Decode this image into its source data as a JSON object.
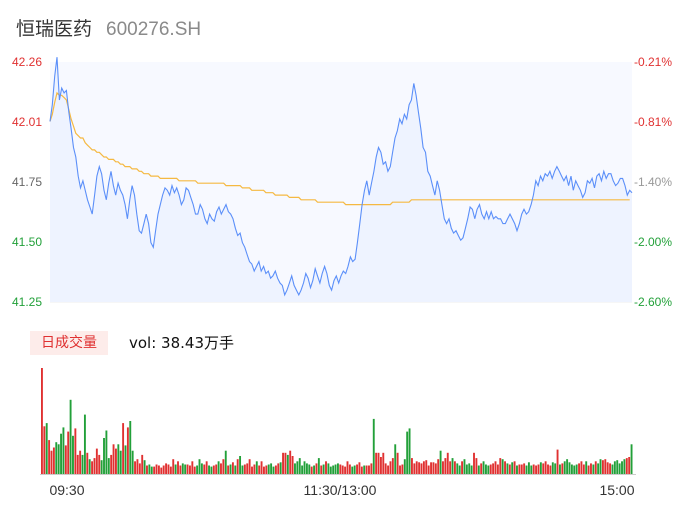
{
  "header": {
    "name": "恒瑞医药",
    "code": "600276.SH"
  },
  "volume_panel": {
    "badge": "日成交量",
    "label": "vol: 38.43万手"
  },
  "colors": {
    "price": "#5b8ff9",
    "avg": "#f5b942",
    "up": "#e03131",
    "down": "#22a039",
    "grid": "#eeeeee"
  },
  "chart_data": [
    {
      "type": "line",
      "title": "",
      "y_left_ticks": [
        "42.26",
        "42.01",
        "41.75",
        "41.50",
        "41.25"
      ],
      "y_right_ticks": [
        "-0.21%",
        "-0.81%",
        "-1.40%",
        "-2.00%",
        "-2.60%"
      ],
      "ylim": [
        41.25,
        42.26
      ],
      "series": [
        {
          "key": "price",
          "values": [
            42.01,
            42.08,
            42.2,
            42.28,
            42.1,
            42.15,
            42.13,
            42.14,
            42.05,
            41.98,
            41.9,
            41.86,
            41.78,
            41.73,
            41.76,
            41.72,
            41.68,
            41.65,
            41.62,
            41.7,
            41.78,
            41.82,
            41.79,
            41.72,
            41.68,
            41.75,
            41.8,
            41.74,
            41.7,
            41.75,
            41.72,
            41.7,
            41.66,
            41.6,
            41.68,
            41.74,
            41.7,
            41.62,
            41.55,
            41.54,
            41.58,
            41.62,
            41.58,
            41.5,
            41.48,
            41.55,
            41.62,
            41.66,
            41.7,
            41.73,
            41.72,
            41.7,
            41.74,
            41.71,
            41.73,
            41.7,
            41.66,
            41.68,
            41.73,
            41.72,
            41.69,
            41.66,
            41.62,
            41.62,
            41.66,
            41.64,
            41.6,
            41.58,
            41.62,
            41.6,
            41.59,
            41.63,
            41.65,
            41.62,
            41.64,
            41.66,
            41.63,
            41.62,
            41.6,
            41.56,
            41.53,
            41.54,
            41.5,
            41.48,
            41.45,
            41.42,
            41.41,
            41.38,
            41.4,
            41.42,
            41.38,
            41.4,
            41.37,
            41.38,
            41.35,
            41.36,
            41.38,
            41.35,
            41.33,
            41.32,
            41.28,
            41.3,
            41.33,
            41.36,
            41.32,
            41.3,
            41.28,
            41.3,
            41.33,
            41.37,
            41.35,
            41.31,
            41.34,
            41.39,
            41.36,
            41.33,
            41.37,
            41.4,
            41.37,
            41.32,
            41.3,
            41.34,
            41.36,
            41.33,
            41.36,
            41.38,
            41.37,
            41.4,
            41.44,
            41.42,
            41.43,
            41.5,
            41.58,
            41.66,
            41.72,
            41.76,
            41.7,
            41.75,
            41.8,
            41.86,
            41.9,
            41.88,
            41.83,
            41.84,
            41.8,
            41.82,
            41.88,
            41.94,
            41.97,
            42.02,
            42.0,
            42.04,
            42.02,
            42.08,
            42.1,
            42.17,
            42.12,
            42.05,
            41.98,
            41.9,
            41.88,
            41.8,
            41.78,
            41.74,
            41.7,
            41.76,
            41.72,
            41.66,
            41.6,
            41.58,
            41.6,
            41.56,
            41.54,
            41.55,
            41.53,
            41.51,
            41.52,
            41.56,
            41.6,
            41.65,
            41.64,
            41.6,
            41.64,
            41.66,
            41.62,
            41.6,
            41.63,
            41.6,
            41.63,
            41.6,
            41.61,
            41.6,
            41.6,
            41.58,
            41.58,
            41.6,
            41.62,
            41.6,
            41.58,
            41.55,
            41.58,
            41.62,
            41.64,
            41.62,
            41.63,
            41.66,
            41.7,
            41.76,
            41.74,
            41.78,
            41.76,
            41.79,
            41.78,
            41.8,
            41.77,
            41.8,
            41.82,
            41.8,
            41.78,
            41.76,
            41.78,
            41.74,
            41.78,
            41.72,
            41.76,
            41.74,
            41.72,
            41.69,
            41.71,
            41.76,
            41.75,
            41.77,
            41.73,
            41.78,
            41.79,
            41.76,
            41.8,
            41.77,
            41.79,
            41.79,
            41.76,
            41.74,
            41.75,
            41.77,
            41.77,
            41.74,
            41.7,
            41.72,
            41.71
          ]
        },
        {
          "key": "avg",
          "values": [
            42.01,
            42.04,
            42.09,
            42.13,
            42.12,
            42.12,
            42.11,
            42.1,
            42.06,
            42.02,
            41.99,
            41.96,
            41.95,
            41.94,
            41.94,
            41.92,
            41.91,
            41.9,
            41.89,
            41.89,
            41.88,
            41.88,
            41.87,
            41.86,
            41.86,
            41.85,
            41.85,
            41.85,
            41.84,
            41.84,
            41.83,
            41.83,
            41.82,
            41.82,
            41.82,
            41.81,
            41.81,
            41.81,
            41.8,
            41.8,
            41.79,
            41.79,
            41.79,
            41.78,
            41.78,
            41.78,
            41.78,
            41.77,
            41.77,
            41.77,
            41.77,
            41.77,
            41.77,
            41.77,
            41.77,
            41.76,
            41.76,
            41.76,
            41.76,
            41.76,
            41.76,
            41.76,
            41.76,
            41.75,
            41.75,
            41.75,
            41.75,
            41.75,
            41.75,
            41.75,
            41.75,
            41.75,
            41.75,
            41.75,
            41.75,
            41.74,
            41.74,
            41.74,
            41.74,
            41.74,
            41.74,
            41.74,
            41.73,
            41.73,
            41.73,
            41.73,
            41.72,
            41.72,
            41.72,
            41.72,
            41.72,
            41.72,
            41.71,
            41.71,
            41.71,
            41.71,
            41.7,
            41.7,
            41.7,
            41.7,
            41.7,
            41.7,
            41.69,
            41.69,
            41.69,
            41.69,
            41.69,
            41.68,
            41.68,
            41.68,
            41.68,
            41.68,
            41.68,
            41.68,
            41.67,
            41.67,
            41.67,
            41.67,
            41.67,
            41.67,
            41.67,
            41.67,
            41.67,
            41.67,
            41.67,
            41.67,
            41.66,
            41.66,
            41.66,
            41.66,
            41.66,
            41.66,
            41.66,
            41.66,
            41.66,
            41.66,
            41.66,
            41.66,
            41.66,
            41.66,
            41.66,
            41.66,
            41.66,
            41.66,
            41.66,
            41.66,
            41.67,
            41.67,
            41.67,
            41.67,
            41.67,
            41.67,
            41.67,
            41.67,
            41.68,
            41.68,
            41.68,
            41.68,
            41.68,
            41.68,
            41.68,
            41.68,
            41.68,
            41.68,
            41.68,
            41.68,
            41.68,
            41.68,
            41.68,
            41.68,
            41.68,
            41.68,
            41.68,
            41.68,
            41.68,
            41.68,
            41.68,
            41.68,
            41.68,
            41.68,
            41.68,
            41.68,
            41.68,
            41.68,
            41.68,
            41.68,
            41.68,
            41.68,
            41.68,
            41.68,
            41.68,
            41.68,
            41.68,
            41.68,
            41.68,
            41.68,
            41.68,
            41.68,
            41.68,
            41.68,
            41.68,
            41.68,
            41.68,
            41.68,
            41.68,
            41.68,
            41.68,
            41.68,
            41.68,
            41.68,
            41.68,
            41.68,
            41.68,
            41.68,
            41.68,
            41.68,
            41.68,
            41.68,
            41.68,
            41.68,
            41.68,
            41.68,
            41.68,
            41.68,
            41.68,
            41.68,
            41.68,
            41.68,
            41.68,
            41.68,
            41.68,
            41.68,
            41.68,
            41.68,
            41.68,
            41.68,
            41.68,
            41.68,
            41.68,
            41.68,
            41.68,
            41.68,
            41.68,
            41.68,
            41.68,
            41.68,
            41.68,
            41.68
          ]
        }
      ]
    },
    {
      "type": "bar",
      "title": "",
      "x_ticks": [
        "09:30",
        "11:30/13:00",
        "15:00"
      ],
      "volumes": [
        100,
        45,
        48,
        32,
        22,
        25,
        30,
        28,
        38,
        44,
        27,
        40,
        70,
        36,
        43,
        18,
        22,
        18,
        56,
        20,
        14,
        12,
        15,
        24,
        18,
        13,
        34,
        41,
        15,
        18,
        28,
        24,
        28,
        22,
        48,
        27,
        44,
        50,
        22,
        12,
        14,
        10,
        18,
        13,
        8,
        9,
        7,
        7,
        9,
        8,
        6,
        8,
        10,
        9,
        7,
        14,
        9,
        12,
        8,
        10,
        9,
        9,
        8,
        12,
        7,
        8,
        14,
        10,
        9,
        12,
        8,
        7,
        8,
        9,
        12,
        10,
        14,
        22,
        8,
        9,
        11,
        8,
        14,
        17,
        8,
        9,
        10,
        14,
        7,
        9,
        12,
        8,
        12,
        7,
        8,
        9,
        10,
        7,
        8,
        10,
        11,
        20,
        20,
        18,
        22,
        17,
        10,
        12,
        15,
        8,
        12,
        10,
        9,
        7,
        8,
        10,
        15,
        8,
        9,
        12,
        10,
        7,
        8,
        9,
        10,
        9,
        8,
        7,
        12,
        9,
        7,
        8,
        9,
        11,
        7,
        8,
        8,
        8,
        10,
        52,
        20,
        20,
        16,
        20,
        10,
        8,
        12,
        15,
        28,
        20,
        8,
        9,
        14,
        40,
        43,
        15,
        10,
        12,
        11,
        10,
        12,
        13,
        8,
        11,
        11,
        10,
        14,
        22,
        12,
        15,
        20,
        12,
        15,
        12,
        10,
        8,
        12,
        14,
        9,
        10,
        8,
        20,
        15,
        8,
        10,
        12,
        9,
        8,
        9,
        10,
        12,
        9,
        15,
        14,
        12,
        10,
        9,
        11,
        12,
        8,
        9,
        9,
        10,
        8,
        11,
        8,
        9,
        8,
        9,
        11,
        10,
        12,
        9,
        8,
        11,
        10,
        23,
        9,
        10,
        12,
        14,
        11,
        9,
        8,
        9,
        10,
        12,
        9,
        12,
        8,
        10,
        9,
        12,
        10,
        14,
        13,
        14,
        11,
        10,
        9,
        12,
        13,
        10,
        12,
        14,
        15,
        16,
        28
      ],
      "up_down": "RRGRRRGGGGRRGGRRRGGRGRRRRGGGGRRRGGRGRGGRRRRGRGGRRRRRRRRRGRRGGRRRRGGGRRGGRRGRRGRGRGRGGRRRRRGRRRRGGGRRGRRGRRGGGGGGGRGRGRGRGGGGGRRRRRGGRRRGRRRGRRRRRRRRGRRRGGGRRRRRRRRRRRRGRRRRGRGGRGGGGRRGRGGGRRRRRGRGRGRGRRRGGGRRRGRRRRGGRGRGGGGGGRRRGRRGRGGRRRRGGGGGGRRGRGRGGRRRGGGGRRG"
    }
  ]
}
